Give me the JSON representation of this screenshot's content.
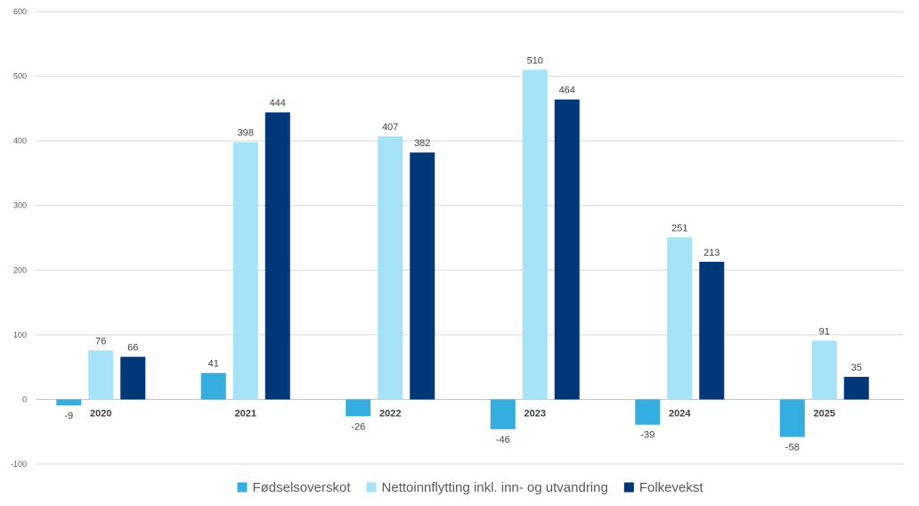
{
  "chart_data": {
    "type": "bar",
    "title": "",
    "xlabel": "",
    "ylabel": "",
    "ylim": [
      -100,
      600
    ],
    "yticks": [
      -100,
      0,
      100,
      200,
      300,
      400,
      500,
      600
    ],
    "grid": true,
    "legend_position": "bottom-center",
    "categories": [
      "2020",
      "2021",
      "2022",
      "2023",
      "2024",
      "2025"
    ],
    "series": [
      {
        "name": "Fødselsoverskot",
        "color": "#35ADDF",
        "values": [
          -9,
          41,
          -26,
          -46,
          -39,
          -58
        ]
      },
      {
        "name": "Nettoinnflytting inkl. inn- og utvandring",
        "color": "#A6E3F8",
        "values": [
          76,
          398,
          407,
          510,
          251,
          91
        ]
      },
      {
        "name": "Folkevekst",
        "color": "#003778",
        "values": [
          66,
          444,
          382,
          464,
          213,
          35
        ]
      }
    ]
  }
}
